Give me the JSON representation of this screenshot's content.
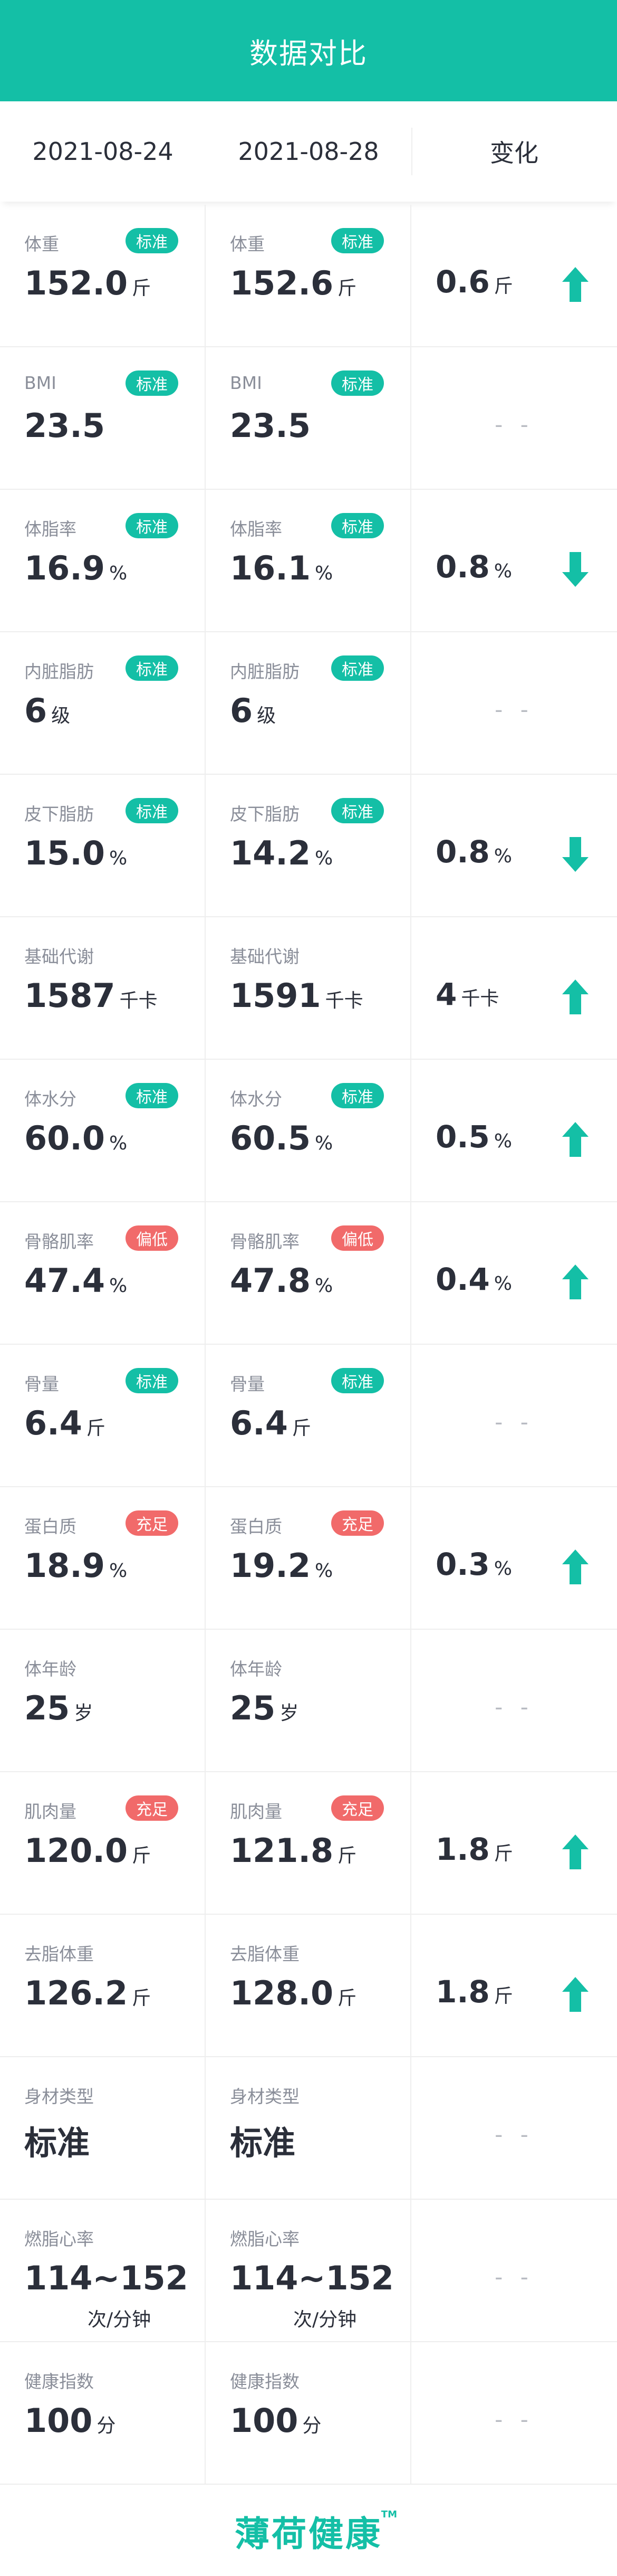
{
  "header": {
    "title": "数据对比"
  },
  "dates": {
    "left": "2021-08-24",
    "right": "2021-08-28",
    "change": "变化"
  },
  "colors": {
    "accent": "#14bfa6",
    "warn": "#f16a6a"
  },
  "rows": [
    {
      "label": "体重",
      "left": {
        "value": "152.0",
        "unit": "斤",
        "badge": "标准",
        "badge_type": "ok"
      },
      "right": {
        "value": "152.6",
        "unit": "斤",
        "badge": "标准",
        "badge_type": "ok"
      },
      "change": {
        "value": "0.6",
        "unit": "斤",
        "direction": "up"
      }
    },
    {
      "label": "BMI",
      "left": {
        "value": "23.5",
        "unit": "",
        "badge": "标准",
        "badge_type": "ok"
      },
      "right": {
        "value": "23.5",
        "unit": "",
        "badge": "标准",
        "badge_type": "ok"
      },
      "change": {
        "value": "- -",
        "unit": "",
        "direction": "none"
      }
    },
    {
      "label": "体脂率",
      "left": {
        "value": "16.9",
        "unit": "%",
        "badge": "标准",
        "badge_type": "ok"
      },
      "right": {
        "value": "16.1",
        "unit": "%",
        "badge": "标准",
        "badge_type": "ok"
      },
      "change": {
        "value": "0.8",
        "unit": "%",
        "direction": "down"
      }
    },
    {
      "label": "内脏脂肪",
      "left": {
        "value": "6",
        "unit": "级",
        "badge": "标准",
        "badge_type": "ok"
      },
      "right": {
        "value": "6",
        "unit": "级",
        "badge": "标准",
        "badge_type": "ok"
      },
      "change": {
        "value": "- -",
        "unit": "",
        "direction": "none"
      }
    },
    {
      "label": "皮下脂肪",
      "left": {
        "value": "15.0",
        "unit": "%",
        "badge": "标准",
        "badge_type": "ok"
      },
      "right": {
        "value": "14.2",
        "unit": "%",
        "badge": "标准",
        "badge_type": "ok"
      },
      "change": {
        "value": "0.8",
        "unit": "%",
        "direction": "down"
      }
    },
    {
      "label": "基础代谢",
      "left": {
        "value": "1587",
        "unit": "千卡",
        "badge": "",
        "badge_type": ""
      },
      "right": {
        "value": "1591",
        "unit": "千卡",
        "badge": "",
        "badge_type": ""
      },
      "change": {
        "value": "4",
        "unit": "千卡",
        "direction": "up"
      }
    },
    {
      "label": "体水分",
      "left": {
        "value": "60.0",
        "unit": "%",
        "badge": "标准",
        "badge_type": "ok"
      },
      "right": {
        "value": "60.5",
        "unit": "%",
        "badge": "标准",
        "badge_type": "ok"
      },
      "change": {
        "value": "0.5",
        "unit": "%",
        "direction": "up"
      }
    },
    {
      "label": "骨骼肌率",
      "left": {
        "value": "47.4",
        "unit": "%",
        "badge": "偏低",
        "badge_type": "warn"
      },
      "right": {
        "value": "47.8",
        "unit": "%",
        "badge": "偏低",
        "badge_type": "warn"
      },
      "change": {
        "value": "0.4",
        "unit": "%",
        "direction": "up"
      }
    },
    {
      "label": "骨量",
      "left": {
        "value": "6.4",
        "unit": "斤",
        "badge": "标准",
        "badge_type": "ok"
      },
      "right": {
        "value": "6.4",
        "unit": "斤",
        "badge": "标准",
        "badge_type": "ok"
      },
      "change": {
        "value": "- -",
        "unit": "",
        "direction": "none"
      }
    },
    {
      "label": "蛋白质",
      "left": {
        "value": "18.9",
        "unit": "%",
        "badge": "充足",
        "badge_type": "warn"
      },
      "right": {
        "value": "19.2",
        "unit": "%",
        "badge": "充足",
        "badge_type": "warn"
      },
      "change": {
        "value": "0.3",
        "unit": "%",
        "direction": "up"
      }
    },
    {
      "label": "体年龄",
      "left": {
        "value": "25",
        "unit": "岁",
        "badge": "",
        "badge_type": ""
      },
      "right": {
        "value": "25",
        "unit": "岁",
        "badge": "",
        "badge_type": ""
      },
      "change": {
        "value": "- -",
        "unit": "",
        "direction": "none"
      }
    },
    {
      "label": "肌肉量",
      "left": {
        "value": "120.0",
        "unit": "斤",
        "badge": "充足",
        "badge_type": "warn"
      },
      "right": {
        "value": "121.8",
        "unit": "斤",
        "badge": "充足",
        "badge_type": "warn"
      },
      "change": {
        "value": "1.8",
        "unit": "斤",
        "direction": "up"
      }
    },
    {
      "label": "去脂体重",
      "left": {
        "value": "126.2",
        "unit": "斤",
        "badge": "",
        "badge_type": ""
      },
      "right": {
        "value": "128.0",
        "unit": "斤",
        "badge": "",
        "badge_type": ""
      },
      "change": {
        "value": "1.8",
        "unit": "斤",
        "direction": "up"
      }
    },
    {
      "label": "身材类型",
      "left": {
        "value": "标准",
        "unit": "",
        "badge": "",
        "badge_type": ""
      },
      "right": {
        "value": "标准",
        "unit": "",
        "badge": "",
        "badge_type": ""
      },
      "change": {
        "value": "- -",
        "unit": "",
        "direction": "none"
      }
    },
    {
      "label": "燃脂心率",
      "left": {
        "value": "114~152",
        "unit": "次/分钟",
        "unit_below": true,
        "badge": "",
        "badge_type": ""
      },
      "right": {
        "value": "114~152",
        "unit": "次/分钟",
        "unit_below": true,
        "badge": "",
        "badge_type": ""
      },
      "change": {
        "value": "- -",
        "unit": "",
        "direction": "none"
      }
    },
    {
      "label": "健康指数",
      "left": {
        "value": "100",
        "unit": "分",
        "badge": "",
        "badge_type": ""
      },
      "right": {
        "value": "100",
        "unit": "分",
        "badge": "",
        "badge_type": ""
      },
      "change": {
        "value": "- -",
        "unit": "",
        "direction": "none"
      }
    }
  ],
  "footer": {
    "logo_text": "薄荷健康",
    "trademark": "TM"
  }
}
